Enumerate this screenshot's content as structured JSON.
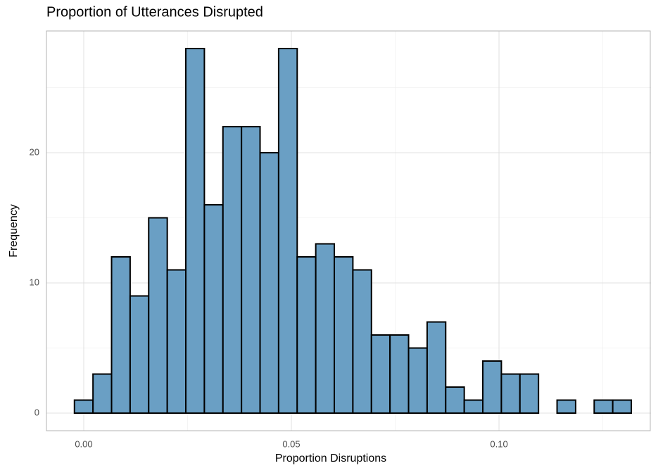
{
  "chart_data": {
    "type": "histogram",
    "title": "Proportion of Utterances Disrupted",
    "x_label": "Proportion Disruptions",
    "y_label": "Frequency",
    "bins": [
      -0.00224,
      0.00223,
      0.0067,
      0.01117,
      0.01564,
      0.02011,
      0.02458,
      0.02905,
      0.03352,
      0.03799,
      0.04246,
      0.04693,
      0.0514,
      0.05587,
      0.06034,
      0.06481,
      0.06928,
      0.07375,
      0.07822,
      0.08269,
      0.08716,
      0.09163,
      0.0961,
      0.10057,
      0.10504,
      0.10951,
      0.11398,
      0.11845,
      0.12292,
      0.12739,
      0.13186
    ],
    "counts": [
      1,
      3,
      12,
      9,
      15,
      11,
      28,
      16,
      22,
      22,
      20,
      28,
      12,
      13,
      12,
      11,
      6,
      6,
      5,
      7,
      2,
      1,
      4,
      3,
      3,
      0,
      1,
      0,
      1,
      1
    ],
    "color": "#6a9fc4",
    "edgecolor": "#000000",
    "xlim": [
      -0.00898,
      0.1366
    ],
    "ylim": [
      -1.35,
      29.35
    ],
    "xticks": [
      {
        "value": 0,
        "label": "0.00"
      },
      {
        "value": 0.05,
        "label": "0.05"
      },
      {
        "value": 0.1,
        "label": "0.10"
      }
    ],
    "xminor": [
      0.025,
      0.075,
      0.125
    ],
    "yticks": [
      0,
      10,
      20
    ],
    "yminor": [
      5,
      15,
      25
    ],
    "grid": true
  }
}
